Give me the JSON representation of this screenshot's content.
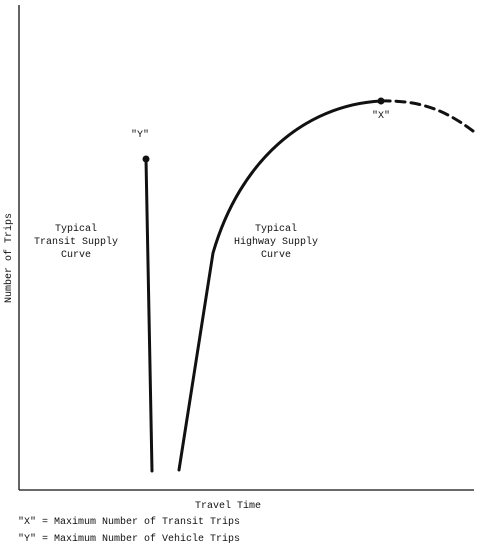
{
  "axes": {
    "x_label": "Travel Time",
    "y_label": "Number of Trips"
  },
  "labels": {
    "transit_line1": "Typical",
    "transit_line2": "Transit Supply",
    "transit_line3": "Curve",
    "highway_line1": "Typical",
    "highway_line2": "Highway Supply",
    "highway_line3": "Curve",
    "point_y": "\"Y\"",
    "point_x": "\"X\""
  },
  "legend": {
    "x_note": "\"X\" = Maximum Number of Transit Trips",
    "y_note": "\"Y\" = Maximum Number of Vehicle Trips"
  }
}
